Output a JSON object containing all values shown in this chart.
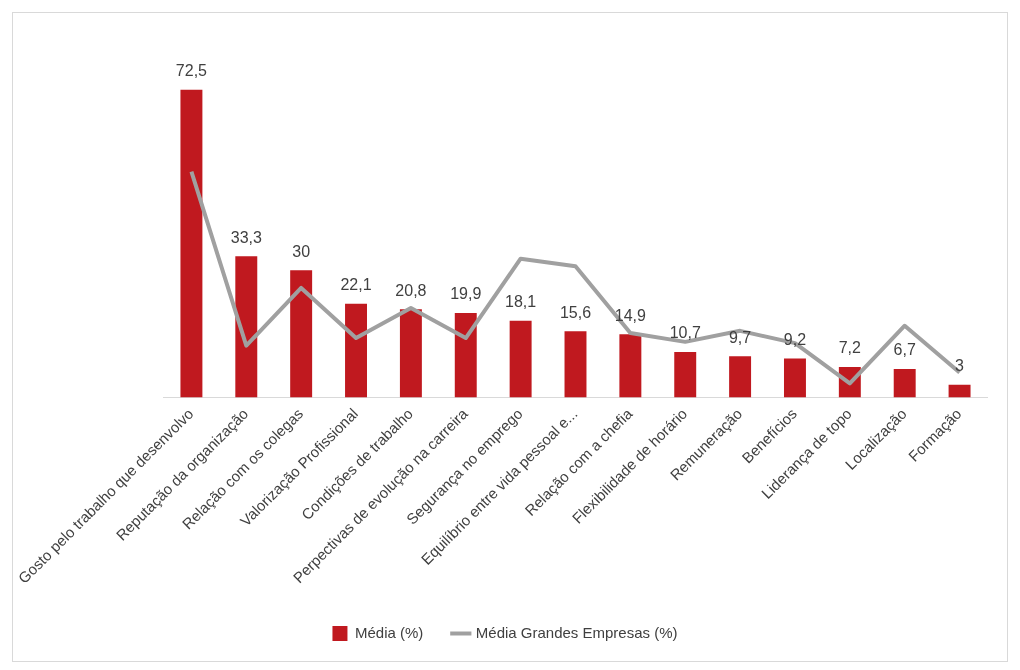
{
  "chart_data": {
    "type": "bar",
    "categories": [
      "Gosto pelo trabalho que desenvolvo",
      "Reputação da organização",
      "Relação com os colegas",
      "Valorização Profissional",
      "Condições de trabalho",
      "Perpectivas de evolução na carreira",
      "Segurança no emprego",
      "Equilíbrio entre vida pessoal e...",
      "Relação com a chefia",
      "Flexibilidade de horário",
      "Remuneração",
      "Benefícios",
      "Liderança de topo",
      "Localização",
      "Formação"
    ],
    "series": [
      {
        "name": "Média (%)",
        "color": "#c0191f",
        "values": [
          72.5,
          33.3,
          30,
          22.1,
          20.8,
          19.9,
          18.1,
          15.6,
          14.9,
          10.7,
          9.7,
          9.2,
          7.2,
          6.7,
          3
        ],
        "value_labels": [
          "72,5",
          "33,3",
          "30",
          "22,1",
          "20,8",
          "19,9",
          "18,1",
          "15,6",
          "14,9",
          "10,7",
          "9,7",
          "9,2",
          "7,2",
          "6,7",
          "3"
        ]
      },
      {
        "name": "Média Grandes Empresas (%)",
        "type": "line",
        "color": "#a0a0a0",
        "marker": "none",
        "values": [
          53.2,
          12.2,
          25.8,
          14.0,
          21.1,
          14.0,
          32.7,
          30.9,
          15.2,
          13.1,
          15.7,
          12.8,
          3.3,
          16.9,
          5.9
        ]
      }
    ],
    "tick_labels": "x",
    "grid": false,
    "legend": "bottom"
  }
}
